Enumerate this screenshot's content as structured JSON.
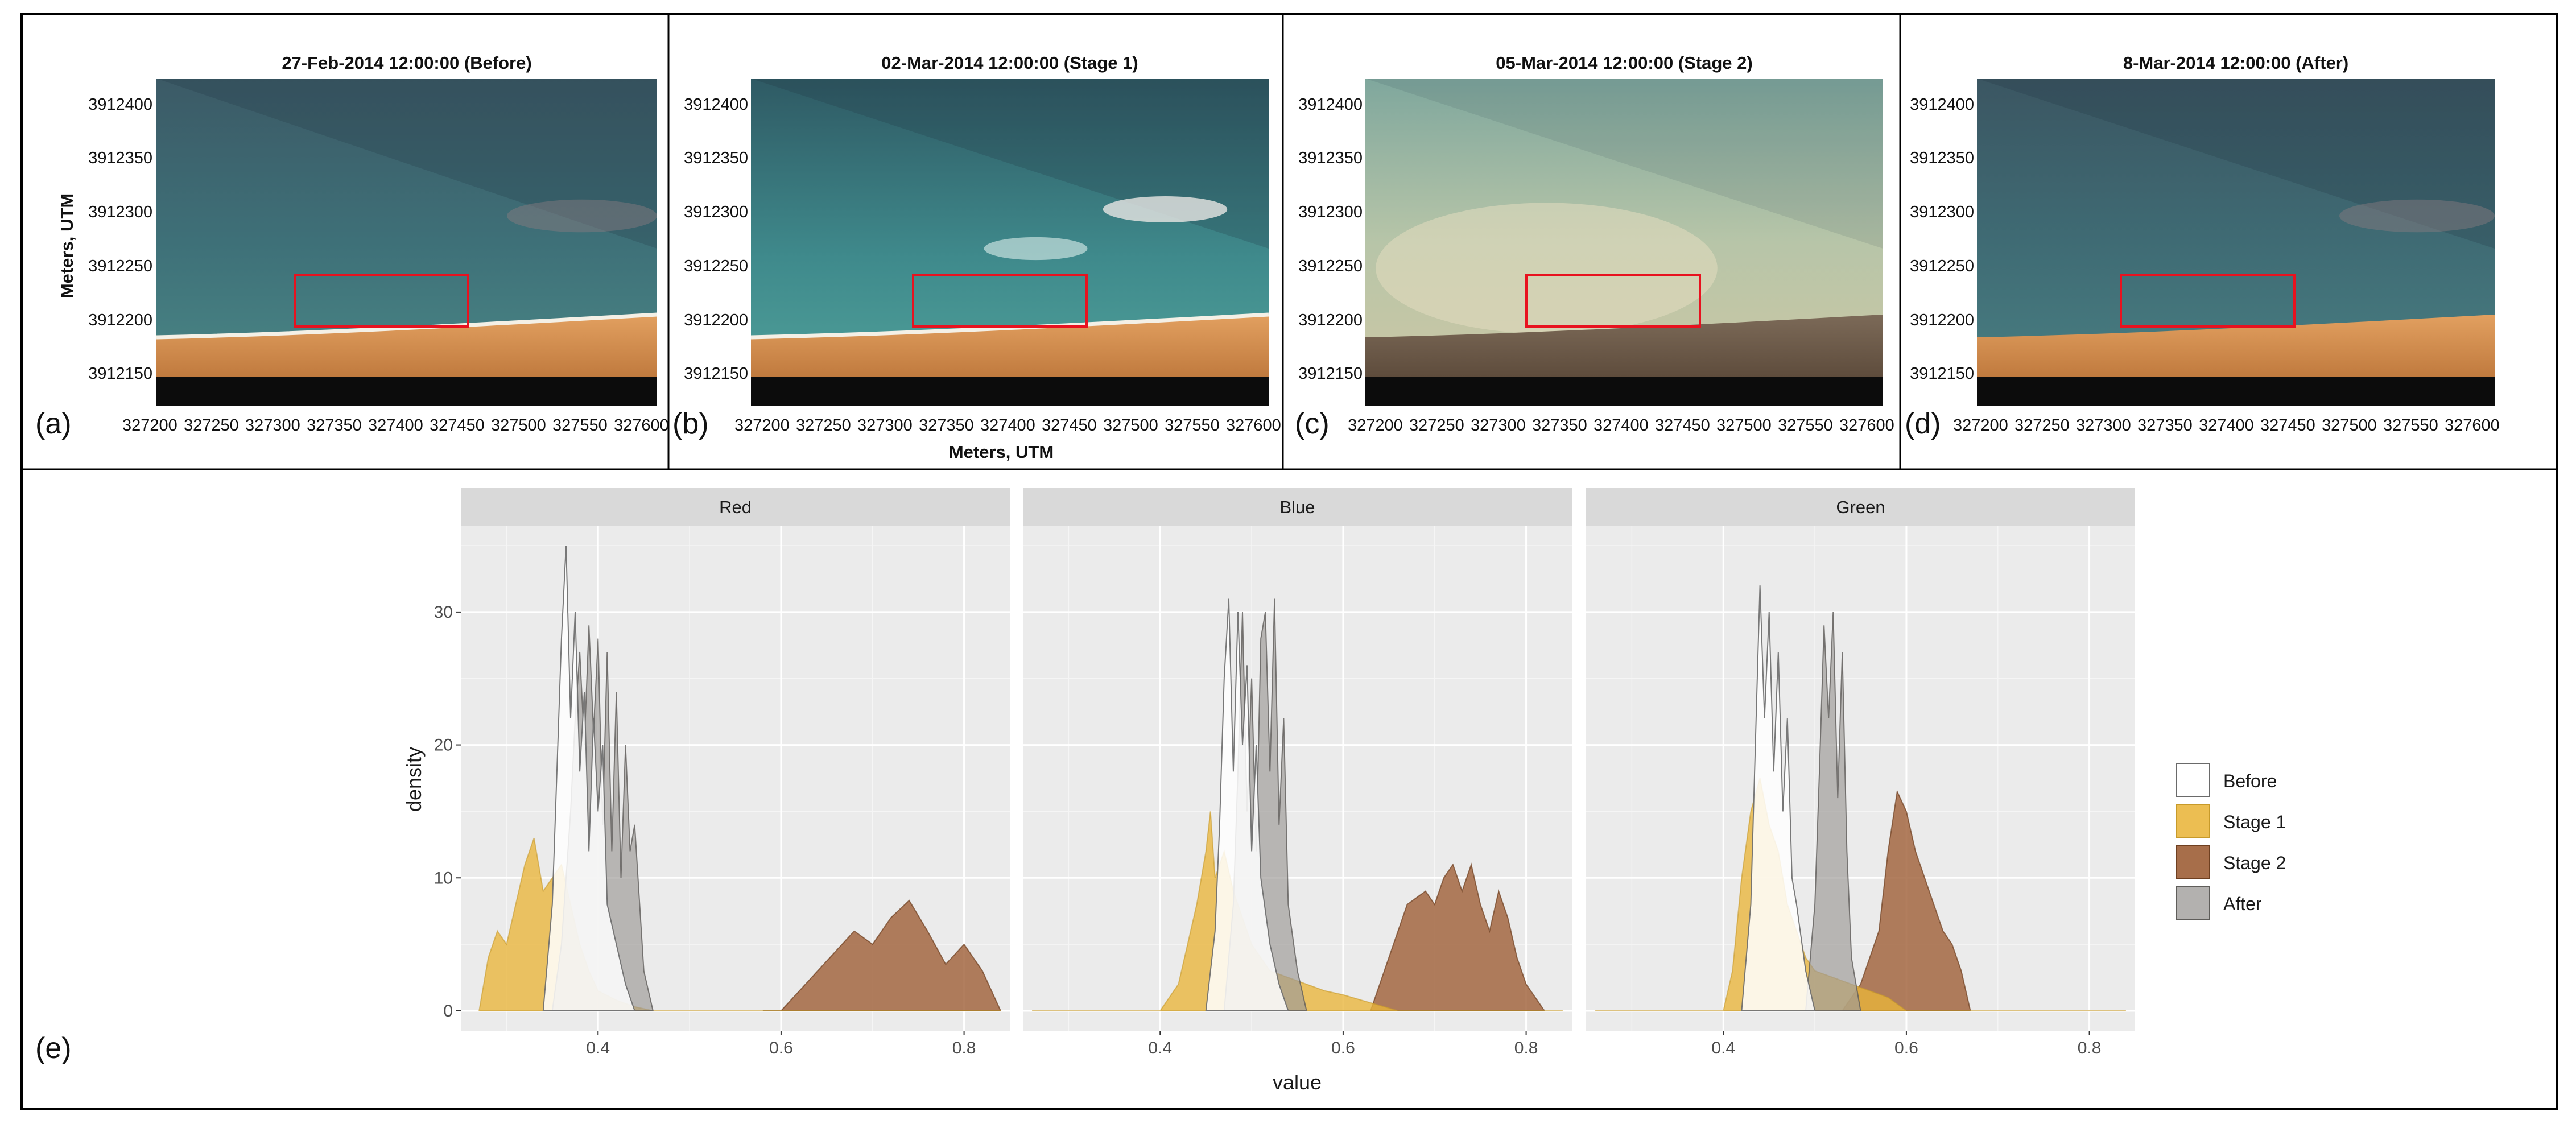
{
  "image_panels": [
    {
      "label": "(a)",
      "title": "27-Feb-2014 12:00:00 (Before)",
      "scene": "before"
    },
    {
      "label": "(b)",
      "title": "02-Mar-2014 12:00:00 (Stage 1)",
      "scene": "stage1"
    },
    {
      "label": "(c)",
      "title": "05-Mar-2014 12:00:00 (Stage 2)",
      "scene": "stage2"
    },
    {
      "label": "(d)",
      "title": "8-Mar-2014 12:00:00 (After)",
      "scene": "after"
    }
  ],
  "utm_axes": {
    "y_ticks": [
      "3912400",
      "3912350",
      "3912300",
      "3912250",
      "3912200",
      "3912150"
    ],
    "x_ticks": [
      "327200",
      "327250",
      "327300",
      "327350",
      "327400",
      "327450",
      "327500",
      "327550",
      "327600"
    ],
    "y_title": "Meters, UTM",
    "x_title": "Meters, UTM"
  },
  "histogram_label": "(e)",
  "chart_data": {
    "type": "area",
    "title": "",
    "xlabel": "value",
    "ylabel": "density",
    "xlim": [
      0.25,
      0.85
    ],
    "ylim": [
      -1.5,
      36.5
    ],
    "x_ticks": [
      0.4,
      0.6,
      0.8
    ],
    "y_ticks": [
      0,
      10,
      20,
      30
    ],
    "legend": {
      "position": "right",
      "items": [
        {
          "name": "Before",
          "color": "#ffffff"
        },
        {
          "name": "Stage 1",
          "color": "#e9b53a"
        },
        {
          "name": "Stage 2",
          "color": "#a0623b"
        },
        {
          "name": "After",
          "color": "#9d9b98"
        }
      ]
    },
    "facets": [
      {
        "name": "Red",
        "series": [
          {
            "name": "Stage 2",
            "x": [
              0.58,
              0.6,
              0.62,
              0.64,
              0.66,
              0.68,
              0.7,
              0.72,
              0.74,
              0.76,
              0.78,
              0.8,
              0.82,
              0.84
            ],
            "y": [
              0,
              0,
              1.5,
              3,
              4.5,
              6,
              5,
              7,
              8.3,
              6,
              3.5,
              5,
              3,
              0
            ]
          },
          {
            "name": "Stage 1",
            "x": [
              0.27,
              0.28,
              0.29,
              0.3,
              0.31,
              0.32,
              0.33,
              0.34,
              0.35,
              0.36,
              0.37,
              0.38,
              0.39,
              0.4,
              0.42,
              0.44,
              0.46,
              0.84
            ],
            "y": [
              0,
              4,
              6,
              5,
              8,
              11,
              13,
              9,
              10,
              11,
              8,
              5,
              3,
              1.5,
              0.8,
              0.3,
              0,
              0
            ]
          },
          {
            "name": "After",
            "x": [
              0.35,
              0.36,
              0.37,
              0.375,
              0.38,
              0.385,
              0.39,
              0.395,
              0.4,
              0.405,
              0.41,
              0.415,
              0.42,
              0.425,
              0.43,
              0.435,
              0.44,
              0.45,
              0.46
            ],
            "y": [
              0,
              5,
              15,
              22,
              27,
              20,
              29,
              21,
              28,
              14,
              27,
              12,
              24,
              10,
              20,
              12,
              14,
              3,
              0
            ]
          },
          {
            "name": "Before",
            "x": [
              0.34,
              0.35,
              0.355,
              0.36,
              0.365,
              0.37,
              0.375,
              0.38,
              0.385,
              0.39,
              0.395,
              0.4,
              0.405,
              0.41,
              0.42,
              0.43,
              0.44
            ],
            "y": [
              0,
              8,
              18,
              28,
              35,
              22,
              30,
              18,
              24,
              12,
              22,
              15,
              20,
              8,
              5,
              2,
              0
            ]
          }
        ]
      },
      {
        "name": "Blue",
        "series": [
          {
            "name": "Stage 2",
            "x": [
              0.63,
              0.65,
              0.67,
              0.69,
              0.7,
              0.71,
              0.72,
              0.73,
              0.74,
              0.75,
              0.76,
              0.77,
              0.78,
              0.79,
              0.8,
              0.82
            ],
            "y": [
              0,
              4,
              8,
              9,
              8,
              10,
              11,
              9,
              11,
              8,
              6,
              9,
              7,
              4,
              2,
              0
            ]
          },
          {
            "name": "Stage 1",
            "x": [
              0.26,
              0.4,
              0.42,
              0.43,
              0.44,
              0.45,
              0.455,
              0.46,
              0.47,
              0.48,
              0.49,
              0.5,
              0.51,
              0.52,
              0.54,
              0.56,
              0.58,
              0.6,
              0.62,
              0.64,
              0.66,
              0.84
            ],
            "y": [
              0,
              0,
              2,
              5,
              8,
              12,
              15,
              10,
              12,
              9,
              7,
              5,
              4,
              3,
              2.5,
              2,
              1.5,
              1.2,
              0.8,
              0.4,
              0,
              0
            ]
          },
          {
            "name": "After",
            "x": [
              0.47,
              0.48,
              0.485,
              0.49,
              0.495,
              0.5,
              0.505,
              0.51,
              0.515,
              0.52,
              0.525,
              0.53,
              0.535,
              0.54,
              0.55,
              0.56
            ],
            "y": [
              0,
              8,
              18,
              30,
              15,
              25,
              12,
              28,
              30,
              18,
              31,
              14,
              22,
              8,
              3,
              0
            ]
          },
          {
            "name": "Before",
            "x": [
              0.45,
              0.46,
              0.465,
              0.47,
              0.475,
              0.48,
              0.485,
              0.49,
              0.495,
              0.5,
              0.505,
              0.51,
              0.52,
              0.53,
              0.54
            ],
            "y": [
              0,
              6,
              14,
              25,
              31,
              18,
              30,
              20,
              26,
              12,
              20,
              10,
              5,
              2,
              0
            ]
          }
        ]
      },
      {
        "name": "Green",
        "series": [
          {
            "name": "Stage 2",
            "x": [
              0.53,
              0.55,
              0.57,
              0.58,
              0.59,
              0.6,
              0.61,
              0.62,
              0.63,
              0.64,
              0.65,
              0.66,
              0.67
            ],
            "y": [
              0,
              2,
              6,
              12,
              16.5,
              15,
              12,
              10,
              8,
              6,
              5,
              3,
              0
            ]
          },
          {
            "name": "Stage 1",
            "x": [
              0.26,
              0.4,
              0.41,
              0.42,
              0.43,
              0.44,
              0.45,
              0.46,
              0.47,
              0.48,
              0.49,
              0.5,
              0.52,
              0.54,
              0.56,
              0.58,
              0.6,
              0.84
            ],
            "y": [
              0,
              0,
              3,
              10,
              15,
              17.5,
              14,
              12,
              8,
              6,
              4,
              3,
              2.5,
              2,
              1.5,
              1,
              0,
              0
            ]
          },
          {
            "name": "After",
            "x": [
              0.49,
              0.5,
              0.505,
              0.51,
              0.515,
              0.52,
              0.525,
              0.53,
              0.535,
              0.54,
              0.55
            ],
            "y": [
              0,
              8,
              18,
              29,
              22,
              30,
              16,
              27,
              12,
              4,
              0
            ]
          },
          {
            "name": "Before",
            "x": [
              0.42,
              0.43,
              0.435,
              0.44,
              0.445,
              0.45,
              0.455,
              0.46,
              0.465,
              0.47,
              0.475,
              0.48,
              0.49,
              0.5
            ],
            "y": [
              0,
              8,
              20,
              32,
              22,
              30,
              18,
              27,
              15,
              22,
              10,
              8,
              3,
              0
            ]
          }
        ]
      }
    ]
  }
}
